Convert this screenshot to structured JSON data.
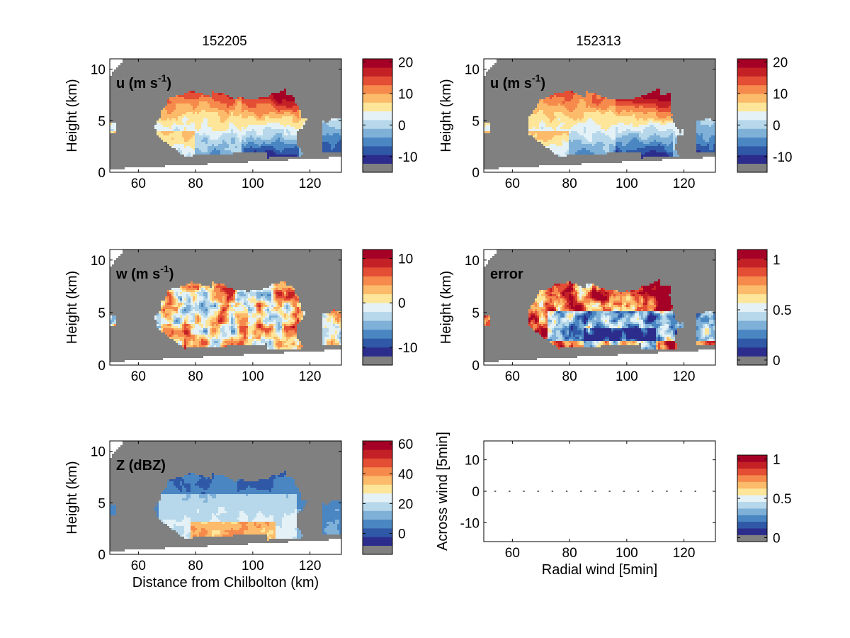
{
  "figure": {
    "column_titles": [
      "152205",
      "152313"
    ]
  },
  "colors": {
    "background_gray": "#808080",
    "axis": "#000000",
    "colormap": [
      "#2c2c8c",
      "#2f58a6",
      "#4a86c2",
      "#7fb1d8",
      "#b6d8ea",
      "#e4f1f6",
      "#fde699",
      "#fcbb6a",
      "#f58a4c",
      "#e34e34",
      "#c42126",
      "#a50026"
    ]
  },
  "chart_data": [
    {
      "id": "u_152205",
      "type": "heatmap",
      "title": "152205",
      "label_main": "u (m s",
      "label_sup": "-1",
      "label_end": ")",
      "xlabel": "",
      "ylabel": "Height (km)",
      "xlim": [
        50,
        131
      ],
      "ylim": [
        0,
        11
      ],
      "xticks": [
        60,
        80,
        100,
        120
      ],
      "yticks": [
        0,
        5,
        10
      ],
      "colorbar": {
        "ticks": [
          20,
          10,
          0,
          -10
        ],
        "range": [
          -15,
          21
        ]
      },
      "field": "u",
      "frame": 0
    },
    {
      "id": "u_152313",
      "type": "heatmap",
      "title": "152313",
      "label_main": "u (m s",
      "label_sup": "-1",
      "label_end": ")",
      "xlabel": "",
      "ylabel": "Height (km)",
      "xlim": [
        50,
        131
      ],
      "ylim": [
        0,
        11
      ],
      "xticks": [
        60,
        80,
        100,
        120
      ],
      "yticks": [
        0,
        5,
        10
      ],
      "colorbar": {
        "ticks": [
          20,
          10,
          0,
          -10
        ],
        "range": [
          -15,
          21
        ]
      },
      "field": "u",
      "frame": 1
    },
    {
      "id": "w_152205",
      "type": "heatmap",
      "label_main": "w (m s",
      "label_sup": "-1",
      "label_end": ")",
      "xlabel": "",
      "ylabel": "Height (km)",
      "xlim": [
        50,
        131
      ],
      "ylim": [
        0,
        11
      ],
      "xticks": [
        60,
        80,
        100,
        120
      ],
      "yticks": [
        0,
        5,
        10
      ],
      "colorbar": {
        "ticks": [
          10,
          0,
          -10
        ],
        "range": [
          -14,
          12
        ]
      },
      "field": "w",
      "frame": 0
    },
    {
      "id": "error_152313",
      "type": "heatmap",
      "label_main": "error",
      "label_sup": "",
      "label_end": "",
      "xlabel": "",
      "ylabel": "Height (km)",
      "xlim": [
        50,
        131
      ],
      "ylim": [
        0,
        11
      ],
      "xticks": [
        60,
        80,
        100,
        120
      ],
      "yticks": [
        0,
        5,
        10
      ],
      "colorbar": {
        "ticks": [
          1,
          0.5,
          0
        ],
        "range": [
          -0.05,
          1.1
        ]
      },
      "field": "error",
      "frame": 1
    },
    {
      "id": "Z_152205",
      "type": "heatmap",
      "label_main": "Z (dBZ)",
      "label_sup": "",
      "label_end": "",
      "xlabel": "Distance from Chilbolton (km)",
      "ylabel": "Height (km)",
      "xlim": [
        50,
        131
      ],
      "ylim": [
        0,
        11
      ],
      "xticks": [
        60,
        80,
        100,
        120
      ],
      "yticks": [
        0,
        5,
        10
      ],
      "colorbar": {
        "ticks": [
          60,
          40,
          20,
          0
        ],
        "range": [
          -14,
          62
        ]
      },
      "field": "Z",
      "frame": 0
    },
    {
      "id": "wind_vectors",
      "type": "scatter",
      "label_main": "",
      "xlabel": "Radial wind [5min]",
      "ylabel": "Across wind [5min]",
      "xlim": [
        50,
        131
      ],
      "ylim": [
        -16,
        16
      ],
      "xticks": [
        60,
        80,
        100,
        120
      ],
      "yticks": [
        10,
        0,
        -10
      ],
      "colorbar": {
        "ticks": [
          1,
          0.5,
          0
        ],
        "range": [
          -0.05,
          1.05
        ]
      },
      "points": [
        {
          "x": 54,
          "y": 0
        },
        {
          "x": 59,
          "y": 0
        },
        {
          "x": 64,
          "y": 0
        },
        {
          "x": 69,
          "y": 0
        },
        {
          "x": 74,
          "y": 0
        },
        {
          "x": 79,
          "y": 0
        },
        {
          "x": 84,
          "y": 0
        },
        {
          "x": 89,
          "y": 0
        },
        {
          "x": 94,
          "y": 0
        },
        {
          "x": 99,
          "y": 0
        },
        {
          "x": 104,
          "y": 0
        },
        {
          "x": 109,
          "y": 0
        },
        {
          "x": 114,
          "y": 0
        },
        {
          "x": 119,
          "y": 0
        },
        {
          "x": 124,
          "y": 0
        }
      ]
    }
  ]
}
